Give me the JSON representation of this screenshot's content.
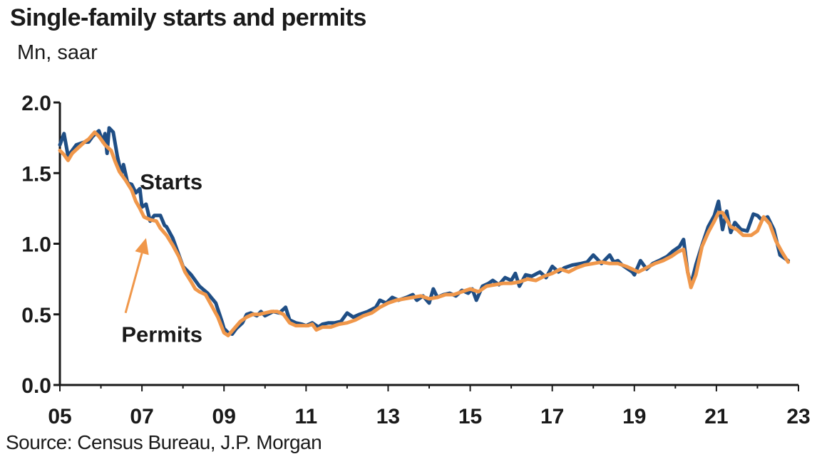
{
  "title": "Single-family starts and permits",
  "unit_label": "Mn, saar",
  "source": "Source: Census Bureau, J.P. Morgan",
  "colors": {
    "starts": "#1f4e85",
    "permits": "#f0974a",
    "axis": "#1a1a1a"
  },
  "chart_data": {
    "type": "line",
    "title": "Single-family starts and permits",
    "ylabel": "Mn, saar",
    "xlabel": "",
    "x_unit": "year",
    "xlim": [
      2005,
      2023
    ],
    "ylim": [
      0,
      2.0
    ],
    "grid": false,
    "legend": "none (series labelled directly on chart)",
    "x_ticks": [
      {
        "value": 2005,
        "label": "05"
      },
      {
        "value": 2007,
        "label": "07"
      },
      {
        "value": 2009,
        "label": "09"
      },
      {
        "value": 2011,
        "label": "11"
      },
      {
        "value": 2013,
        "label": "13"
      },
      {
        "value": 2015,
        "label": "15"
      },
      {
        "value": 2017,
        "label": "17"
      },
      {
        "value": 2019,
        "label": "19"
      },
      {
        "value": 2021,
        "label": "21"
      },
      {
        "value": 2023,
        "label": "23"
      }
    ],
    "y_ticks": [
      {
        "value": 0.0,
        "label": "0.0"
      },
      {
        "value": 0.5,
        "label": "0.5"
      },
      {
        "value": 1.0,
        "label": "1.0"
      },
      {
        "value": 1.5,
        "label": "1.5"
      },
      {
        "value": 2.0,
        "label": "2.0"
      }
    ],
    "annotations": [
      {
        "text": "Starts",
        "x": 2006.95,
        "y": 1.44
      },
      {
        "text": "Permits",
        "x": 2006.5,
        "y": 0.36
      }
    ],
    "arrow": {
      "from": [
        2006.6,
        0.51
      ],
      "to": [
        2007.1,
        1.04
      ]
    },
    "series": [
      {
        "name": "Starts",
        "color": "#1f4e85",
        "points": [
          [
            2005.0,
            1.7
          ],
          [
            2005.1,
            1.78
          ],
          [
            2005.2,
            1.62
          ],
          [
            2005.4,
            1.7
          ],
          [
            2005.6,
            1.72
          ],
          [
            2005.7,
            1.72
          ],
          [
            2005.8,
            1.76
          ],
          [
            2005.95,
            1.8
          ],
          [
            2006.05,
            1.72
          ],
          [
            2006.1,
            1.78
          ],
          [
            2006.15,
            1.64
          ],
          [
            2006.2,
            1.82
          ],
          [
            2006.3,
            1.79
          ],
          [
            2006.4,
            1.62
          ],
          [
            2006.5,
            1.49
          ],
          [
            2006.55,
            1.56
          ],
          [
            2006.65,
            1.43
          ],
          [
            2006.75,
            1.42
          ],
          [
            2006.85,
            1.36
          ],
          [
            2006.95,
            1.39
          ],
          [
            2007.0,
            1.26
          ],
          [
            2007.1,
            1.28
          ],
          [
            2007.2,
            1.16
          ],
          [
            2007.3,
            1.2
          ],
          [
            2007.45,
            1.2
          ],
          [
            2007.55,
            1.13
          ],
          [
            2007.6,
            1.12
          ],
          [
            2007.75,
            1.04
          ],
          [
            2007.9,
            0.92
          ],
          [
            2008.0,
            0.84
          ],
          [
            2008.2,
            0.78
          ],
          [
            2008.4,
            0.7
          ],
          [
            2008.6,
            0.65
          ],
          [
            2008.8,
            0.58
          ],
          [
            2008.95,
            0.45
          ],
          [
            2009.0,
            0.4
          ],
          [
            2009.1,
            0.37
          ],
          [
            2009.2,
            0.36
          ],
          [
            2009.3,
            0.4
          ],
          [
            2009.45,
            0.44
          ],
          [
            2009.55,
            0.5
          ],
          [
            2009.65,
            0.51
          ],
          [
            2009.8,
            0.49
          ],
          [
            2009.9,
            0.52
          ],
          [
            2010.0,
            0.49
          ],
          [
            2010.2,
            0.52
          ],
          [
            2010.35,
            0.51
          ],
          [
            2010.5,
            0.55
          ],
          [
            2010.6,
            0.46
          ],
          [
            2010.75,
            0.44
          ],
          [
            2010.9,
            0.43
          ],
          [
            2011.0,
            0.42
          ],
          [
            2011.15,
            0.44
          ],
          [
            2011.3,
            0.41
          ],
          [
            2011.4,
            0.43
          ],
          [
            2011.55,
            0.44
          ],
          [
            2011.7,
            0.44
          ],
          [
            2011.85,
            0.45
          ],
          [
            2012.0,
            0.51
          ],
          [
            2012.15,
            0.48
          ],
          [
            2012.3,
            0.5
          ],
          [
            2012.5,
            0.52
          ],
          [
            2012.7,
            0.55
          ],
          [
            2012.8,
            0.6
          ],
          [
            2012.95,
            0.58
          ],
          [
            2013.1,
            0.62
          ],
          [
            2013.25,
            0.6
          ],
          [
            2013.45,
            0.62
          ],
          [
            2013.6,
            0.64
          ],
          [
            2013.7,
            0.6
          ],
          [
            2013.85,
            0.63
          ],
          [
            2014.0,
            0.58
          ],
          [
            2014.1,
            0.68
          ],
          [
            2014.2,
            0.62
          ],
          [
            2014.35,
            0.64
          ],
          [
            2014.5,
            0.65
          ],
          [
            2014.65,
            0.63
          ],
          [
            2014.8,
            0.67
          ],
          [
            2014.95,
            0.65
          ],
          [
            2015.05,
            0.68
          ],
          [
            2015.15,
            0.6
          ],
          [
            2015.3,
            0.7
          ],
          [
            2015.45,
            0.72
          ],
          [
            2015.55,
            0.74
          ],
          [
            2015.7,
            0.71
          ],
          [
            2015.85,
            0.76
          ],
          [
            2016.0,
            0.74
          ],
          [
            2016.1,
            0.79
          ],
          [
            2016.2,
            0.7
          ],
          [
            2016.35,
            0.78
          ],
          [
            2016.5,
            0.77
          ],
          [
            2016.7,
            0.8
          ],
          [
            2016.85,
            0.76
          ],
          [
            2017.0,
            0.84
          ],
          [
            2017.15,
            0.8
          ],
          [
            2017.3,
            0.83
          ],
          [
            2017.5,
            0.85
          ],
          [
            2017.7,
            0.86
          ],
          [
            2017.85,
            0.87
          ],
          [
            2018.0,
            0.92
          ],
          [
            2018.2,
            0.86
          ],
          [
            2018.4,
            0.92
          ],
          [
            2018.5,
            0.87
          ],
          [
            2018.6,
            0.88
          ],
          [
            2018.7,
            0.85
          ],
          [
            2018.85,
            0.82
          ],
          [
            2018.95,
            0.8
          ],
          [
            2019.0,
            0.78
          ],
          [
            2019.15,
            0.88
          ],
          [
            2019.3,
            0.82
          ],
          [
            2019.45,
            0.86
          ],
          [
            2019.6,
            0.88
          ],
          [
            2019.8,
            0.91
          ],
          [
            2019.95,
            0.95
          ],
          [
            2020.1,
            0.98
          ],
          [
            2020.2,
            1.03
          ],
          [
            2020.3,
            0.8
          ],
          [
            2020.38,
            0.71
          ],
          [
            2020.5,
            0.85
          ],
          [
            2020.65,
            0.99
          ],
          [
            2020.8,
            1.12
          ],
          [
            2020.95,
            1.2
          ],
          [
            2021.05,
            1.3
          ],
          [
            2021.15,
            1.1
          ],
          [
            2021.25,
            1.23
          ],
          [
            2021.35,
            1.08
          ],
          [
            2021.45,
            1.15
          ],
          [
            2021.6,
            1.1
          ],
          [
            2021.75,
            1.09
          ],
          [
            2021.9,
            1.21
          ],
          [
            2022.0,
            1.2
          ],
          [
            2022.1,
            1.17
          ],
          [
            2022.25,
            1.19
          ],
          [
            2022.4,
            1.1
          ],
          [
            2022.55,
            0.92
          ],
          [
            2022.65,
            0.9
          ],
          [
            2022.75,
            0.88
          ]
        ]
      },
      {
        "name": "Permits",
        "color": "#f0974a",
        "points": [
          [
            2005.0,
            1.66
          ],
          [
            2005.1,
            1.63
          ],
          [
            2005.2,
            1.59
          ],
          [
            2005.3,
            1.64
          ],
          [
            2005.45,
            1.68
          ],
          [
            2005.6,
            1.72
          ],
          [
            2005.7,
            1.74
          ],
          [
            2005.85,
            1.79
          ],
          [
            2005.95,
            1.76
          ],
          [
            2006.1,
            1.7
          ],
          [
            2006.25,
            1.66
          ],
          [
            2006.35,
            1.58
          ],
          [
            2006.45,
            1.51
          ],
          [
            2006.6,
            1.45
          ],
          [
            2006.75,
            1.38
          ],
          [
            2006.85,
            1.3
          ],
          [
            2006.95,
            1.25
          ],
          [
            2007.05,
            1.19
          ],
          [
            2007.2,
            1.17
          ],
          [
            2007.35,
            1.16
          ],
          [
            2007.45,
            1.11
          ],
          [
            2007.6,
            1.06
          ],
          [
            2007.75,
            0.99
          ],
          [
            2007.9,
            0.91
          ],
          [
            2008.05,
            0.8
          ],
          [
            2008.2,
            0.73
          ],
          [
            2008.3,
            0.68
          ],
          [
            2008.4,
            0.66
          ],
          [
            2008.55,
            0.64
          ],
          [
            2008.7,
            0.56
          ],
          [
            2008.85,
            0.48
          ],
          [
            2009.0,
            0.37
          ],
          [
            2009.1,
            0.35
          ],
          [
            2009.25,
            0.4
          ],
          [
            2009.4,
            0.45
          ],
          [
            2009.55,
            0.48
          ],
          [
            2009.7,
            0.5
          ],
          [
            2009.85,
            0.5
          ],
          [
            2010.0,
            0.51
          ],
          [
            2010.15,
            0.52
          ],
          [
            2010.3,
            0.52
          ],
          [
            2010.45,
            0.5
          ],
          [
            2010.6,
            0.44
          ],
          [
            2010.75,
            0.42
          ],
          [
            2010.9,
            0.42
          ],
          [
            2011.05,
            0.42
          ],
          [
            2011.15,
            0.43
          ],
          [
            2011.25,
            0.39
          ],
          [
            2011.4,
            0.41
          ],
          [
            2011.6,
            0.41
          ],
          [
            2011.8,
            0.43
          ],
          [
            2012.0,
            0.44
          ],
          [
            2012.2,
            0.46
          ],
          [
            2012.4,
            0.49
          ],
          [
            2012.6,
            0.51
          ],
          [
            2012.8,
            0.55
          ],
          [
            2013.0,
            0.58
          ],
          [
            2013.2,
            0.6
          ],
          [
            2013.4,
            0.61
          ],
          [
            2013.6,
            0.62
          ],
          [
            2013.8,
            0.63
          ],
          [
            2014.0,
            0.61
          ],
          [
            2014.2,
            0.62
          ],
          [
            2014.4,
            0.64
          ],
          [
            2014.6,
            0.64
          ],
          [
            2014.8,
            0.66
          ],
          [
            2015.0,
            0.68
          ],
          [
            2015.2,
            0.66
          ],
          [
            2015.4,
            0.7
          ],
          [
            2015.6,
            0.71
          ],
          [
            2015.8,
            0.72
          ],
          [
            2016.0,
            0.72
          ],
          [
            2016.2,
            0.73
          ],
          [
            2016.4,
            0.75
          ],
          [
            2016.6,
            0.74
          ],
          [
            2016.8,
            0.77
          ],
          [
            2017.0,
            0.79
          ],
          [
            2017.2,
            0.82
          ],
          [
            2017.4,
            0.8
          ],
          [
            2017.6,
            0.83
          ],
          [
            2017.8,
            0.85
          ],
          [
            2018.0,
            0.86
          ],
          [
            2018.2,
            0.87
          ],
          [
            2018.4,
            0.86
          ],
          [
            2018.6,
            0.86
          ],
          [
            2018.8,
            0.84
          ],
          [
            2018.95,
            0.82
          ],
          [
            2019.1,
            0.8
          ],
          [
            2019.3,
            0.83
          ],
          [
            2019.5,
            0.86
          ],
          [
            2019.7,
            0.88
          ],
          [
            2019.9,
            0.91
          ],
          [
            2020.05,
            0.94
          ],
          [
            2020.2,
            0.96
          ],
          [
            2020.3,
            0.8
          ],
          [
            2020.38,
            0.69
          ],
          [
            2020.5,
            0.78
          ],
          [
            2020.65,
            0.98
          ],
          [
            2020.8,
            1.08
          ],
          [
            2020.95,
            1.16
          ],
          [
            2021.05,
            1.22
          ],
          [
            2021.15,
            1.22
          ],
          [
            2021.25,
            1.17
          ],
          [
            2021.35,
            1.12
          ],
          [
            2021.5,
            1.1
          ],
          [
            2021.65,
            1.06
          ],
          [
            2021.85,
            1.06
          ],
          [
            2022.0,
            1.09
          ],
          [
            2022.15,
            1.19
          ],
          [
            2022.3,
            1.14
          ],
          [
            2022.45,
            1.02
          ],
          [
            2022.6,
            0.94
          ],
          [
            2022.75,
            0.87
          ]
        ]
      }
    ]
  }
}
